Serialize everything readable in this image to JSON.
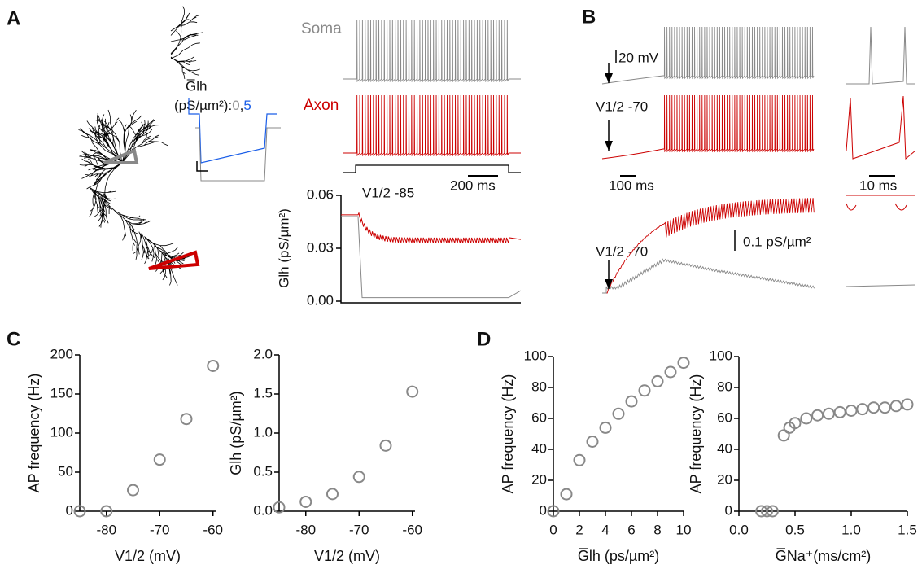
{
  "panels": {
    "a": "A",
    "b": "B",
    "c": "C",
    "d": "D"
  },
  "panel_a": {
    "soma": "Soma",
    "axon": "Axon",
    "glh_label": "G̅lh",
    "glh_units": [
      "(pS/µm²):",
      "0",
      ",",
      "5"
    ],
    "v_half": "V1/2 -85",
    "time_scale": "200 ms",
    "glh_axis": {
      "ylabel": "Glh (pS/µm²)",
      "ylim": [
        0,
        0.06
      ],
      "yticks": [
        {
          "value": 0,
          "label": "0.00"
        },
        {
          "value": 0.03,
          "label": "0.03"
        },
        {
          "value": 0.06,
          "label": "0.06"
        }
      ]
    }
  },
  "panel_b": {
    "volt_scale": "20 mV",
    "v_half_1": "V1/2 -70",
    "time_scale_1": "100 ms",
    "time_scale_2": "10 ms",
    "glh_scale": "0.1 pS/µm²",
    "v_half_2": "V1/2 -70"
  },
  "chart_data": [
    {
      "type": "scatter",
      "x_label": "V1/2 (mV)",
      "y_label": "AP frequency (Hz)",
      "x": [
        -85,
        -80,
        -75,
        -70,
        -65,
        -60
      ],
      "values": [
        0,
        0,
        27,
        66,
        118,
        186
      ],
      "color": "#888888",
      "xlim": [
        -85,
        -59.5
      ],
      "xticks": [
        -80,
        -70,
        -60
      ],
      "ylim": [
        0,
        200
      ],
      "yticks": [
        0,
        50,
        100,
        150,
        200
      ]
    },
    {
      "type": "scatter",
      "x_label": "V1/2 (mV)",
      "y_label": "Glh (pS/µm²)",
      "x": [
        -85,
        -80,
        -75,
        -70,
        -65,
        -60
      ],
      "values": [
        0.05,
        0.12,
        0.22,
        0.44,
        0.84,
        1.53
      ],
      "color": "#888888",
      "xlim": [
        -85,
        -59.5
      ],
      "xticks": [
        -80,
        -70,
        -60
      ],
      "ylim": [
        0,
        2
      ],
      "yticks": [
        {
          "value": 0,
          "label": "0.0"
        },
        0.5,
        {
          "value": 1,
          "label": "1.0"
        },
        1.5,
        {
          "value": 2,
          "label": "2.0"
        }
      ]
    },
    {
      "type": "scatter",
      "x_label": "G̅lh (ps/µm²)",
      "y_label": "AP frequency (Hz)",
      "x": [
        0,
        1,
        2,
        3,
        4,
        5,
        6,
        7,
        8,
        9,
        10
      ],
      "values": [
        0,
        11,
        33,
        45,
        54,
        63,
        71,
        78,
        84,
        90,
        96
      ],
      "color": "#888888",
      "xlim": [
        0,
        10
      ],
      "xticks": [
        0,
        2,
        4,
        6,
        8,
        10
      ],
      "ylim": [
        0,
        100
      ],
      "yticks": [
        0,
        20,
        40,
        60,
        80,
        100
      ]
    },
    {
      "type": "scatter",
      "x_label": "G̅Na⁺(ms/cm²)",
      "y_label": "AP frequency (Hz)",
      "x": [
        0.2,
        0.25,
        0.3,
        0.4,
        0.45,
        0.5,
        0.6,
        0.7,
        0.8,
        0.9,
        1.0,
        1.1,
        1.2,
        1.3,
        1.4,
        1.5
      ],
      "values": [
        0,
        0,
        0,
        49,
        54,
        57,
        60,
        62,
        63,
        64,
        65,
        66,
        67,
        67,
        68,
        69
      ],
      "color": "#888888",
      "xlim": [
        0,
        1.5
      ],
      "xticks": [
        {
          "value": 0,
          "label": "0.0"
        },
        0.5,
        {
          "value": 1,
          "label": "1.0"
        },
        1.5
      ],
      "ylim": [
        0,
        100
      ],
      "yticks": [
        0,
        20,
        40,
        60,
        80,
        100
      ]
    }
  ]
}
